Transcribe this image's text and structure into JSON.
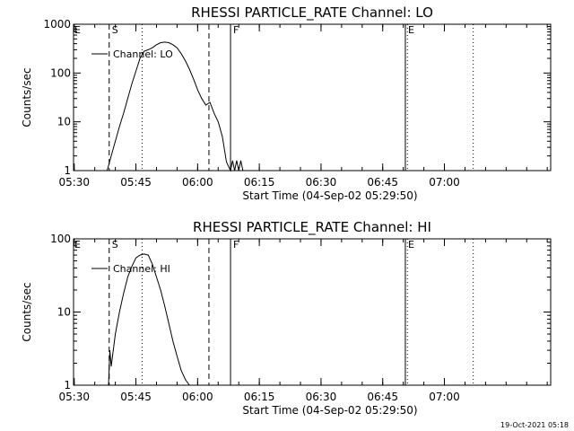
{
  "chart_data": [
    {
      "type": "line",
      "title": "RHESSI PARTICLE_RATE Channel: LO",
      "xlabel": "Start Time (04-Sep-02 05:29:50)",
      "ylabel": "Counts/sec",
      "yscale": "log",
      "ylim": [
        1,
        1000
      ],
      "xlim_minutes": [
        0,
        116
      ],
      "x_tick_labels": [
        "05:30",
        "05:45",
        "06:00",
        "06:15",
        "06:30",
        "06:45",
        "07:00"
      ],
      "y_tick_labels": [
        "1",
        "10",
        "100",
        "1000"
      ],
      "legend": {
        "label": "Channel: LO",
        "position": "top-left"
      },
      "markers": [
        {
          "time": "05:38:30",
          "label": "S",
          "style": "dashed"
        },
        {
          "time": "05:46:30",
          "label": "",
          "style": "dotted"
        },
        {
          "time": "06:02:45",
          "label": "",
          "style": "dashed"
        },
        {
          "time": "06:08:00",
          "label": "F",
          "style": "solid"
        },
        {
          "time": "06:50:30",
          "label": "E",
          "style": "solid"
        },
        {
          "time": "06:51:00",
          "label": "",
          "style": "dotted"
        },
        {
          "time": "07:07:00",
          "label": "",
          "style": "dotted"
        }
      ],
      "edge_label": "E",
      "series": [
        {
          "name": "Channel: LO",
          "x": [
            "05:38:00",
            "05:39:00",
            "05:40:00",
            "05:41:00",
            "05:42:00",
            "05:43:00",
            "05:44:00",
            "05:45:00",
            "05:46:00",
            "05:47:00",
            "05:48:00",
            "05:49:00",
            "05:50:00",
            "05:51:00",
            "05:52:00",
            "05:53:00",
            "05:54:00",
            "05:55:00",
            "05:56:00",
            "05:57:00",
            "05:58:00",
            "05:59:00",
            "06:00:00",
            "06:01:00",
            "06:02:00",
            "06:03:00",
            "06:04:00",
            "06:05:00",
            "06:06:00",
            "06:07:00",
            "06:08:00",
            "06:08:30",
            "06:09:00",
            "06:09:30",
            "06:10:00",
            "06:10:30",
            "06:11:00"
          ],
          "y": [
            1,
            2,
            4,
            8,
            15,
            30,
            60,
            110,
            200,
            280,
            300,
            330,
            380,
            420,
            430,
            420,
            380,
            330,
            250,
            180,
            120,
            75,
            45,
            30,
            22,
            25,
            15,
            10,
            5,
            1.5,
            1,
            1.6,
            1,
            1.6,
            1,
            1.6,
            1
          ]
        }
      ]
    },
    {
      "type": "line",
      "title": "RHESSI PARTICLE_RATE Channel: HI",
      "xlabel": "Start Time (04-Sep-02 05:29:50)",
      "ylabel": "Counts/sec",
      "yscale": "log",
      "ylim": [
        1,
        100
      ],
      "xlim_minutes": [
        0,
        116
      ],
      "x_tick_labels": [
        "05:30",
        "05:45",
        "06:00",
        "06:15",
        "06:30",
        "06:45",
        "07:00"
      ],
      "y_tick_labels": [
        "1",
        "10",
        "100"
      ],
      "legend": {
        "label": "Channel: HI",
        "position": "top-left"
      },
      "markers": [
        {
          "time": "05:38:30",
          "label": "S",
          "style": "dashed"
        },
        {
          "time": "05:46:30",
          "label": "",
          "style": "dotted"
        },
        {
          "time": "06:02:45",
          "label": "",
          "style": "dashed"
        },
        {
          "time": "06:08:00",
          "label": "F",
          "style": "solid"
        },
        {
          "time": "06:50:30",
          "label": "E",
          "style": "solid"
        },
        {
          "time": "06:51:00",
          "label": "",
          "style": "dotted"
        },
        {
          "time": "07:07:00",
          "label": "",
          "style": "dotted"
        }
      ],
      "edge_label": "E",
      "series": [
        {
          "name": "Channel: HI",
          "x": [
            "05:38:20",
            "05:38:40",
            "05:39:00",
            "05:40:00",
            "05:41:00",
            "05:42:00",
            "05:43:00",
            "05:44:00",
            "05:45:00",
            "05:46:00",
            "05:47:00",
            "05:48:00",
            "05:49:00",
            "05:50:00",
            "05:51:00",
            "05:52:00",
            "05:53:00",
            "05:54:00",
            "05:55:00",
            "05:56:00",
            "05:57:00",
            "05:58:00"
          ],
          "y": [
            1,
            3,
            1.8,
            5,
            10,
            18,
            30,
            42,
            55,
            60,
            62,
            60,
            45,
            30,
            20,
            12,
            7,
            4,
            2.5,
            1.6,
            1.2,
            1
          ]
        }
      ]
    }
  ],
  "footer": {
    "timestamp": "19-Oct-2021 05:18"
  }
}
